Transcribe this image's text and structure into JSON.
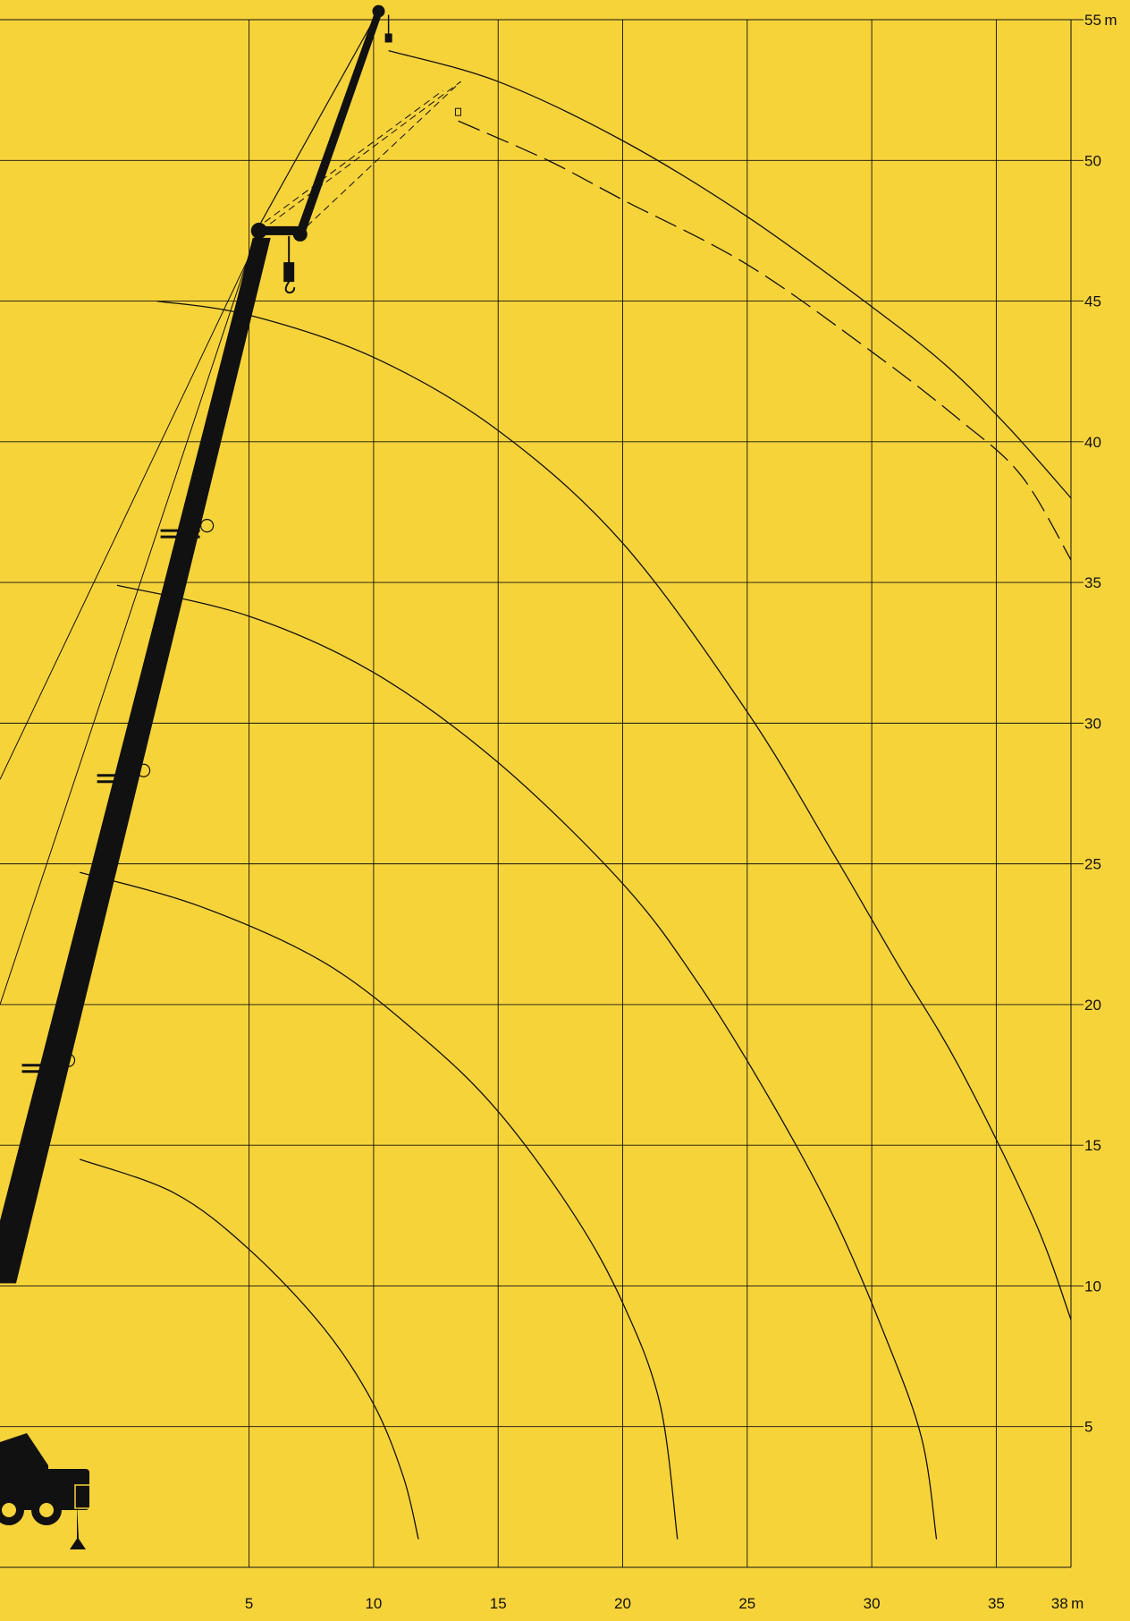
{
  "colors": {
    "background": "#f7d33a",
    "ink": "#111111"
  },
  "chart_data": {
    "type": "line",
    "title": "",
    "xlabel": "",
    "ylabel": "",
    "x_unit": "m",
    "y_unit": "m",
    "xlim": [
      -5,
      38
    ],
    "ylim": [
      0,
      55
    ],
    "grid": true,
    "x_ticks": [
      {
        "value": 5,
        "label": "5"
      },
      {
        "value": 10,
        "label": "10"
      },
      {
        "value": 15,
        "label": "15"
      },
      {
        "value": 20,
        "label": "20"
      },
      {
        "value": 25,
        "label": "25"
      },
      {
        "value": 30,
        "label": "30"
      },
      {
        "value": 35,
        "label": "35"
      },
      {
        "value": 38,
        "label": "38"
      }
    ],
    "y_ticks": [
      {
        "value": 5,
        "label": "5"
      },
      {
        "value": 10,
        "label": "10"
      },
      {
        "value": 15,
        "label": "15"
      },
      {
        "value": 20,
        "label": "20"
      },
      {
        "value": 25,
        "label": "25"
      },
      {
        "value": 30,
        "label": "30"
      },
      {
        "value": 35,
        "label": "35"
      },
      {
        "value": 40,
        "label": "40"
      },
      {
        "value": 45,
        "label": "45"
      },
      {
        "value": 50,
        "label": "50"
      },
      {
        "value": 55,
        "label": "55"
      }
    ],
    "series": [
      {
        "style": "solid",
        "points": [
          [
            -1.8,
            14.5
          ],
          [
            2,
            13.3
          ],
          [
            5,
            11.3
          ],
          [
            8,
            8.5
          ],
          [
            10,
            5.8
          ],
          [
            11.2,
            3.2
          ],
          [
            11.8,
            1.0
          ]
        ]
      },
      {
        "style": "solid",
        "points": [
          [
            -1.8,
            24.7
          ],
          [
            3,
            23.5
          ],
          [
            8,
            21.5
          ],
          [
            12,
            18.8
          ],
          [
            15,
            16.2
          ],
          [
            18,
            12.6
          ],
          [
            20,
            9.4
          ],
          [
            21.5,
            5.8
          ],
          [
            22.2,
            1.0
          ]
        ]
      },
      {
        "style": "solid",
        "points": [
          [
            -0.3,
            34.9
          ],
          [
            5,
            33.8
          ],
          [
            10,
            31.8
          ],
          [
            15,
            28.6
          ],
          [
            20,
            24.3
          ],
          [
            23,
            20.8
          ],
          [
            26,
            16.5
          ],
          [
            28.5,
            12.4
          ],
          [
            30.5,
            8.3
          ],
          [
            32,
            4.6
          ],
          [
            32.6,
            1.0
          ]
        ]
      },
      {
        "style": "solid",
        "points": [
          [
            1.3,
            45.0
          ],
          [
            5,
            44.5
          ],
          [
            10,
            43.0
          ],
          [
            15,
            40.4
          ],
          [
            20,
            36.4
          ],
          [
            25,
            30.4
          ],
          [
            28.5,
            25.3
          ],
          [
            31,
            21.5
          ],
          [
            33.5,
            17.8
          ],
          [
            36.5,
            12.4
          ],
          [
            38,
            8.8
          ]
        ]
      },
      {
        "style": "solid",
        "points": [
          [
            10.6,
            53.9
          ],
          [
            15,
            52.8
          ],
          [
            20,
            50.7
          ],
          [
            25,
            48.0
          ],
          [
            30,
            44.8
          ],
          [
            33,
            42.7
          ],
          [
            35.5,
            40.5
          ],
          [
            38,
            38.0
          ]
        ]
      },
      {
        "style": "dashed",
        "points": [
          [
            13.4,
            51.4
          ],
          [
            17,
            50.0
          ],
          [
            20,
            48.6
          ],
          [
            25,
            46.3
          ],
          [
            30,
            43.2
          ],
          [
            33.5,
            40.8
          ],
          [
            36,
            38.8
          ],
          [
            38,
            35.8
          ]
        ]
      }
    ],
    "boom": {
      "base": [
        -5,
        12.0
      ],
      "head": [
        5.4,
        47.5
      ],
      "jib_tip": [
        10.2,
        55.3
      ],
      "jib_dashed_tip": [
        13.5,
        52.8
      ],
      "hook_main": [
        6.6,
        45.3
      ],
      "hook_jib": [
        10.6,
        54.0
      ]
    }
  }
}
